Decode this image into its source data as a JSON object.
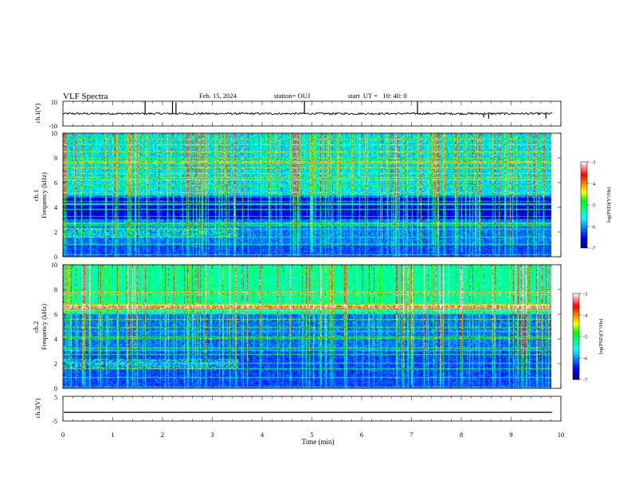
{
  "header": {
    "title": "VLF Spectra",
    "date": "Feb. 15, 2024",
    "station": "station= OUJ",
    "start_ut": "start  UT =   10: 40: 0"
  },
  "chart_data": [
    {
      "type": "line",
      "name": "ch1-waveform",
      "ylabel": "ch.1(V)",
      "ylim": [
        -10,
        10
      ],
      "y_ticks": [
        10,
        -10
      ],
      "x": [
        0,
        1,
        2,
        3,
        4,
        5,
        6,
        7,
        8,
        9,
        10
      ],
      "xlim": [
        0,
        10
      ],
      "baseline": 0,
      "spikes": [
        {
          "t": 1.65,
          "v": 10
        },
        {
          "t": 2.2,
          "v": 10
        },
        {
          "t": 2.27,
          "v": 9
        },
        {
          "t": 4.85,
          "v": 10
        },
        {
          "t": 7.12,
          "v": 10
        },
        {
          "t": 8.45,
          "v": -3
        },
        {
          "t": 8.55,
          "v": -4
        },
        {
          "t": 9.7,
          "v": -4
        }
      ]
    },
    {
      "type": "heatmap",
      "name": "ch1-spectrogram",
      "ylabel": "ch.1\nFrequency (kHz)",
      "ylim": [
        0,
        10
      ],
      "y_ticks": [
        0,
        2,
        4,
        6,
        8,
        10
      ],
      "xlim": [
        0,
        10
      ],
      "colorbar": {
        "label": "log(PSD)(V²/Hz)",
        "range": [
          -7,
          -3
        ],
        "ticks": [
          -3,
          -4,
          -5,
          -6,
          -7
        ]
      }
    },
    {
      "type": "heatmap",
      "name": "ch2-spectrogram",
      "ylabel": "ch.2\nFrequency (kHz)",
      "ylim": [
        0,
        10
      ],
      "y_ticks": [
        0,
        2,
        4,
        6,
        8,
        10
      ],
      "xlim": [
        0,
        10
      ],
      "colorbar": {
        "label": "log(PSD)(V²/Hz)",
        "range": [
          -7,
          -3
        ],
        "ticks": [
          -3,
          -4,
          -5,
          -6,
          -7
        ]
      }
    },
    {
      "type": "line",
      "name": "ch3-waveform",
      "ylabel": "ch.3(V)",
      "ylim": [
        -5,
        5
      ],
      "y_ticks": [
        5,
        -5
      ],
      "x": [
        0,
        10
      ],
      "values": [
        -1.5,
        -1.5
      ],
      "xlabel": "Time (min)",
      "x_ticks": [
        0,
        1,
        2,
        3,
        4,
        5,
        6,
        7,
        8,
        9,
        10
      ]
    }
  ],
  "colors": {
    "axis": "#000000"
  }
}
